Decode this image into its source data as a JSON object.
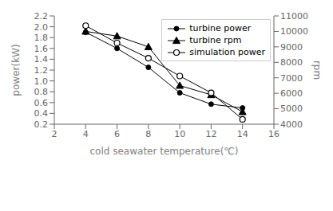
{
  "chart_data": {
    "type": "line",
    "xlabel": "cold seawater temperature(℃)",
    "ylabel": "power(kW)",
    "y2label": "rpm",
    "x": [
      4,
      6,
      8,
      10,
      12,
      14
    ],
    "series": [
      {
        "name": "turbine power",
        "color": "#000000",
        "marker": "circle",
        "values": [
          1.9,
          1.6,
          1.25,
          0.78,
          0.57,
          0.5
        ]
      },
      {
        "name": "turbine rpm",
        "color": "#000000",
        "marker": "triangle",
        "axis": "y2",
        "values": [
          10000,
          9700,
          9000,
          6500,
          5900,
          4800
        ]
      },
      {
        "name": "simulation power",
        "color": "#000000",
        "marker": "open_circle",
        "values": [
          2.02,
          1.7,
          1.42,
          1.09,
          0.78,
          0.29
        ]
      }
    ],
    "xlim": [
      2,
      16
    ],
    "xticks": [
      2,
      4,
      6,
      8,
      10,
      12,
      14,
      16
    ],
    "ylim": [
      0.2,
      2.2
    ],
    "yticks": [
      0.2,
      0.4,
      0.6,
      0.8,
      {
        "value": 1.0,
        "label": "1.0"
      },
      1.2,
      1.4,
      1.6,
      1.8,
      {
        "value": 2.0,
        "label": "2.0"
      },
      2.2
    ],
    "y2lim": [
      4000,
      11000
    ],
    "y2ticks": [
      4000,
      5000,
      6000,
      7000,
      8000,
      9000,
      10000,
      11000
    ],
    "legend": "upper right"
  }
}
